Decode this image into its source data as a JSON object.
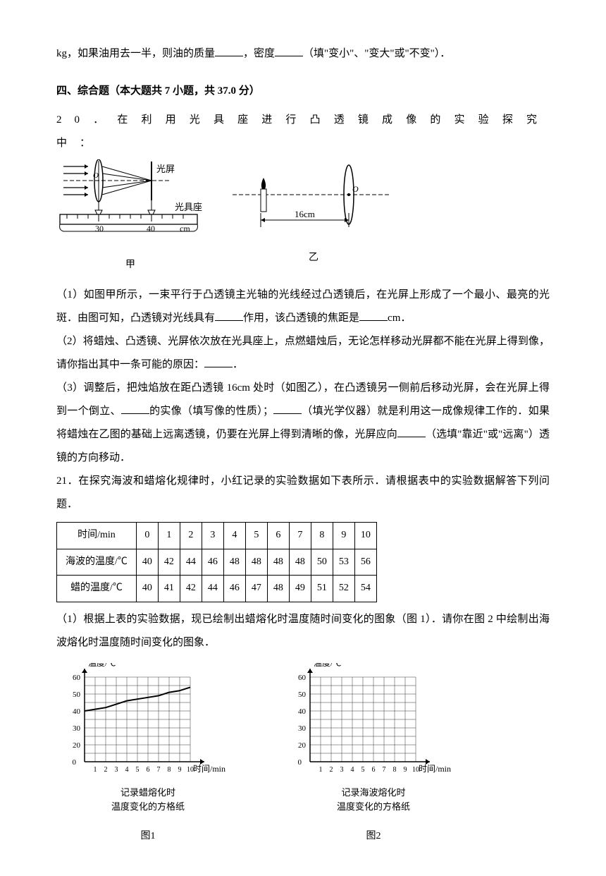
{
  "topline": "kg，如果油用去一半，则油的质量",
  "topline2": "，密度",
  "topline3": "（填\"变小\"、\"变大\"或\"不变\"）．",
  "section_title": "四、综合题（本大题共 7 小题，共 37.0 分）",
  "q20_intro": "20．在利用光具座进行凸透镜成像的实验探究中：",
  "q20_1a": "（1）如图甲所示，一束平行于凸透镜主光轴的光线经过凸透镜后，在光屏上形成了一个最小、最亮的光斑．由图可知，凸透镜对光线具有",
  "q20_1b": "作用，该凸透镜的焦距是",
  "q20_1c": "cm．",
  "q20_2a": "（2）将蜡烛、凸透镜、光屏依次放在光具座上，点燃蜡烛后，无论怎样移动光屏都不能在光屏上得到像，请你指出其中一条可能的原因：",
  "q20_2b": "．",
  "q20_3a": "（3）调整后，把烛焰放在距凸透镜 16cm 处时（如图乙），在凸透镜另一侧前后移动光屏，会在光屏上得到一个倒立、",
  "q20_3b": "的实像（填写像的性质）；",
  "q20_3c": "（填光学仪器）就是利用这一成像规律工作的．如果将蜡烛在乙图的基础上远离透镜，仍要在光屏上得到清晰的像，光屏应向",
  "q20_3d": "（选填\"靠近\"或\"远离\"）透镜的方向移动．",
  "q21_intro": "21．在探究海波和蜡熔化规律时，小红记录的实验数据如下表所示．请根据表中的实验数据解答下列问题．",
  "q21_p1": "（1）根据上表的实验数据，现已绘制出蜡熔化时温度随时间变化的图象（图 1）．请你在图 2 中绘制出海波熔化时温度随时间变化的图象．",
  "table": {
    "headers": [
      "时间/min",
      "0",
      "1",
      "2",
      "3",
      "4",
      "5",
      "6",
      "7",
      "8",
      "9",
      "10"
    ],
    "row1": [
      "海波的温度/℃",
      "40",
      "42",
      "44",
      "46",
      "48",
      "48",
      "48",
      "48",
      "50",
      "53",
      "56"
    ],
    "row2": [
      "蜡的温度/℃",
      "40",
      "41",
      "42",
      "44",
      "46",
      "47",
      "48",
      "49",
      "51",
      "52",
      "54"
    ]
  },
  "fig_jia": {
    "label_screen": "光屏",
    "label_track": "光具座",
    "label_cm": "cm",
    "ticks": [
      "30",
      "40"
    ],
    "caption": "甲"
  },
  "fig_yi": {
    "dist": "16cm",
    "caption": "乙"
  },
  "chart": {
    "ylabel": "温度/℃",
    "xlabel": "时间/min",
    "yticks": [
      "0",
      "20",
      "30",
      "40",
      "50",
      "60"
    ],
    "xticks": [
      "1",
      "2",
      "3",
      "4",
      "5",
      "6",
      "7",
      "8",
      "9",
      "10"
    ],
    "grid_count_x": 10,
    "grid_count_y": 10,
    "caption1a": "记录蜡熔化时",
    "caption1b": "温度变化的方格纸",
    "caption2a": "记录海波熔化时",
    "caption2b": "温度变化的方格纸",
    "fig1": "图1",
    "fig2": "图2",
    "wax_curve": [
      [
        0,
        40
      ],
      [
        1,
        41
      ],
      [
        2,
        42
      ],
      [
        3,
        44
      ],
      [
        4,
        46
      ],
      [
        5,
        47
      ],
      [
        6,
        48
      ],
      [
        7,
        49
      ],
      [
        8,
        51
      ],
      [
        9,
        52
      ],
      [
        10,
        54
      ]
    ],
    "colors": {
      "axis": "#000000",
      "grid": "#333333",
      "curve": "#000000"
    }
  }
}
